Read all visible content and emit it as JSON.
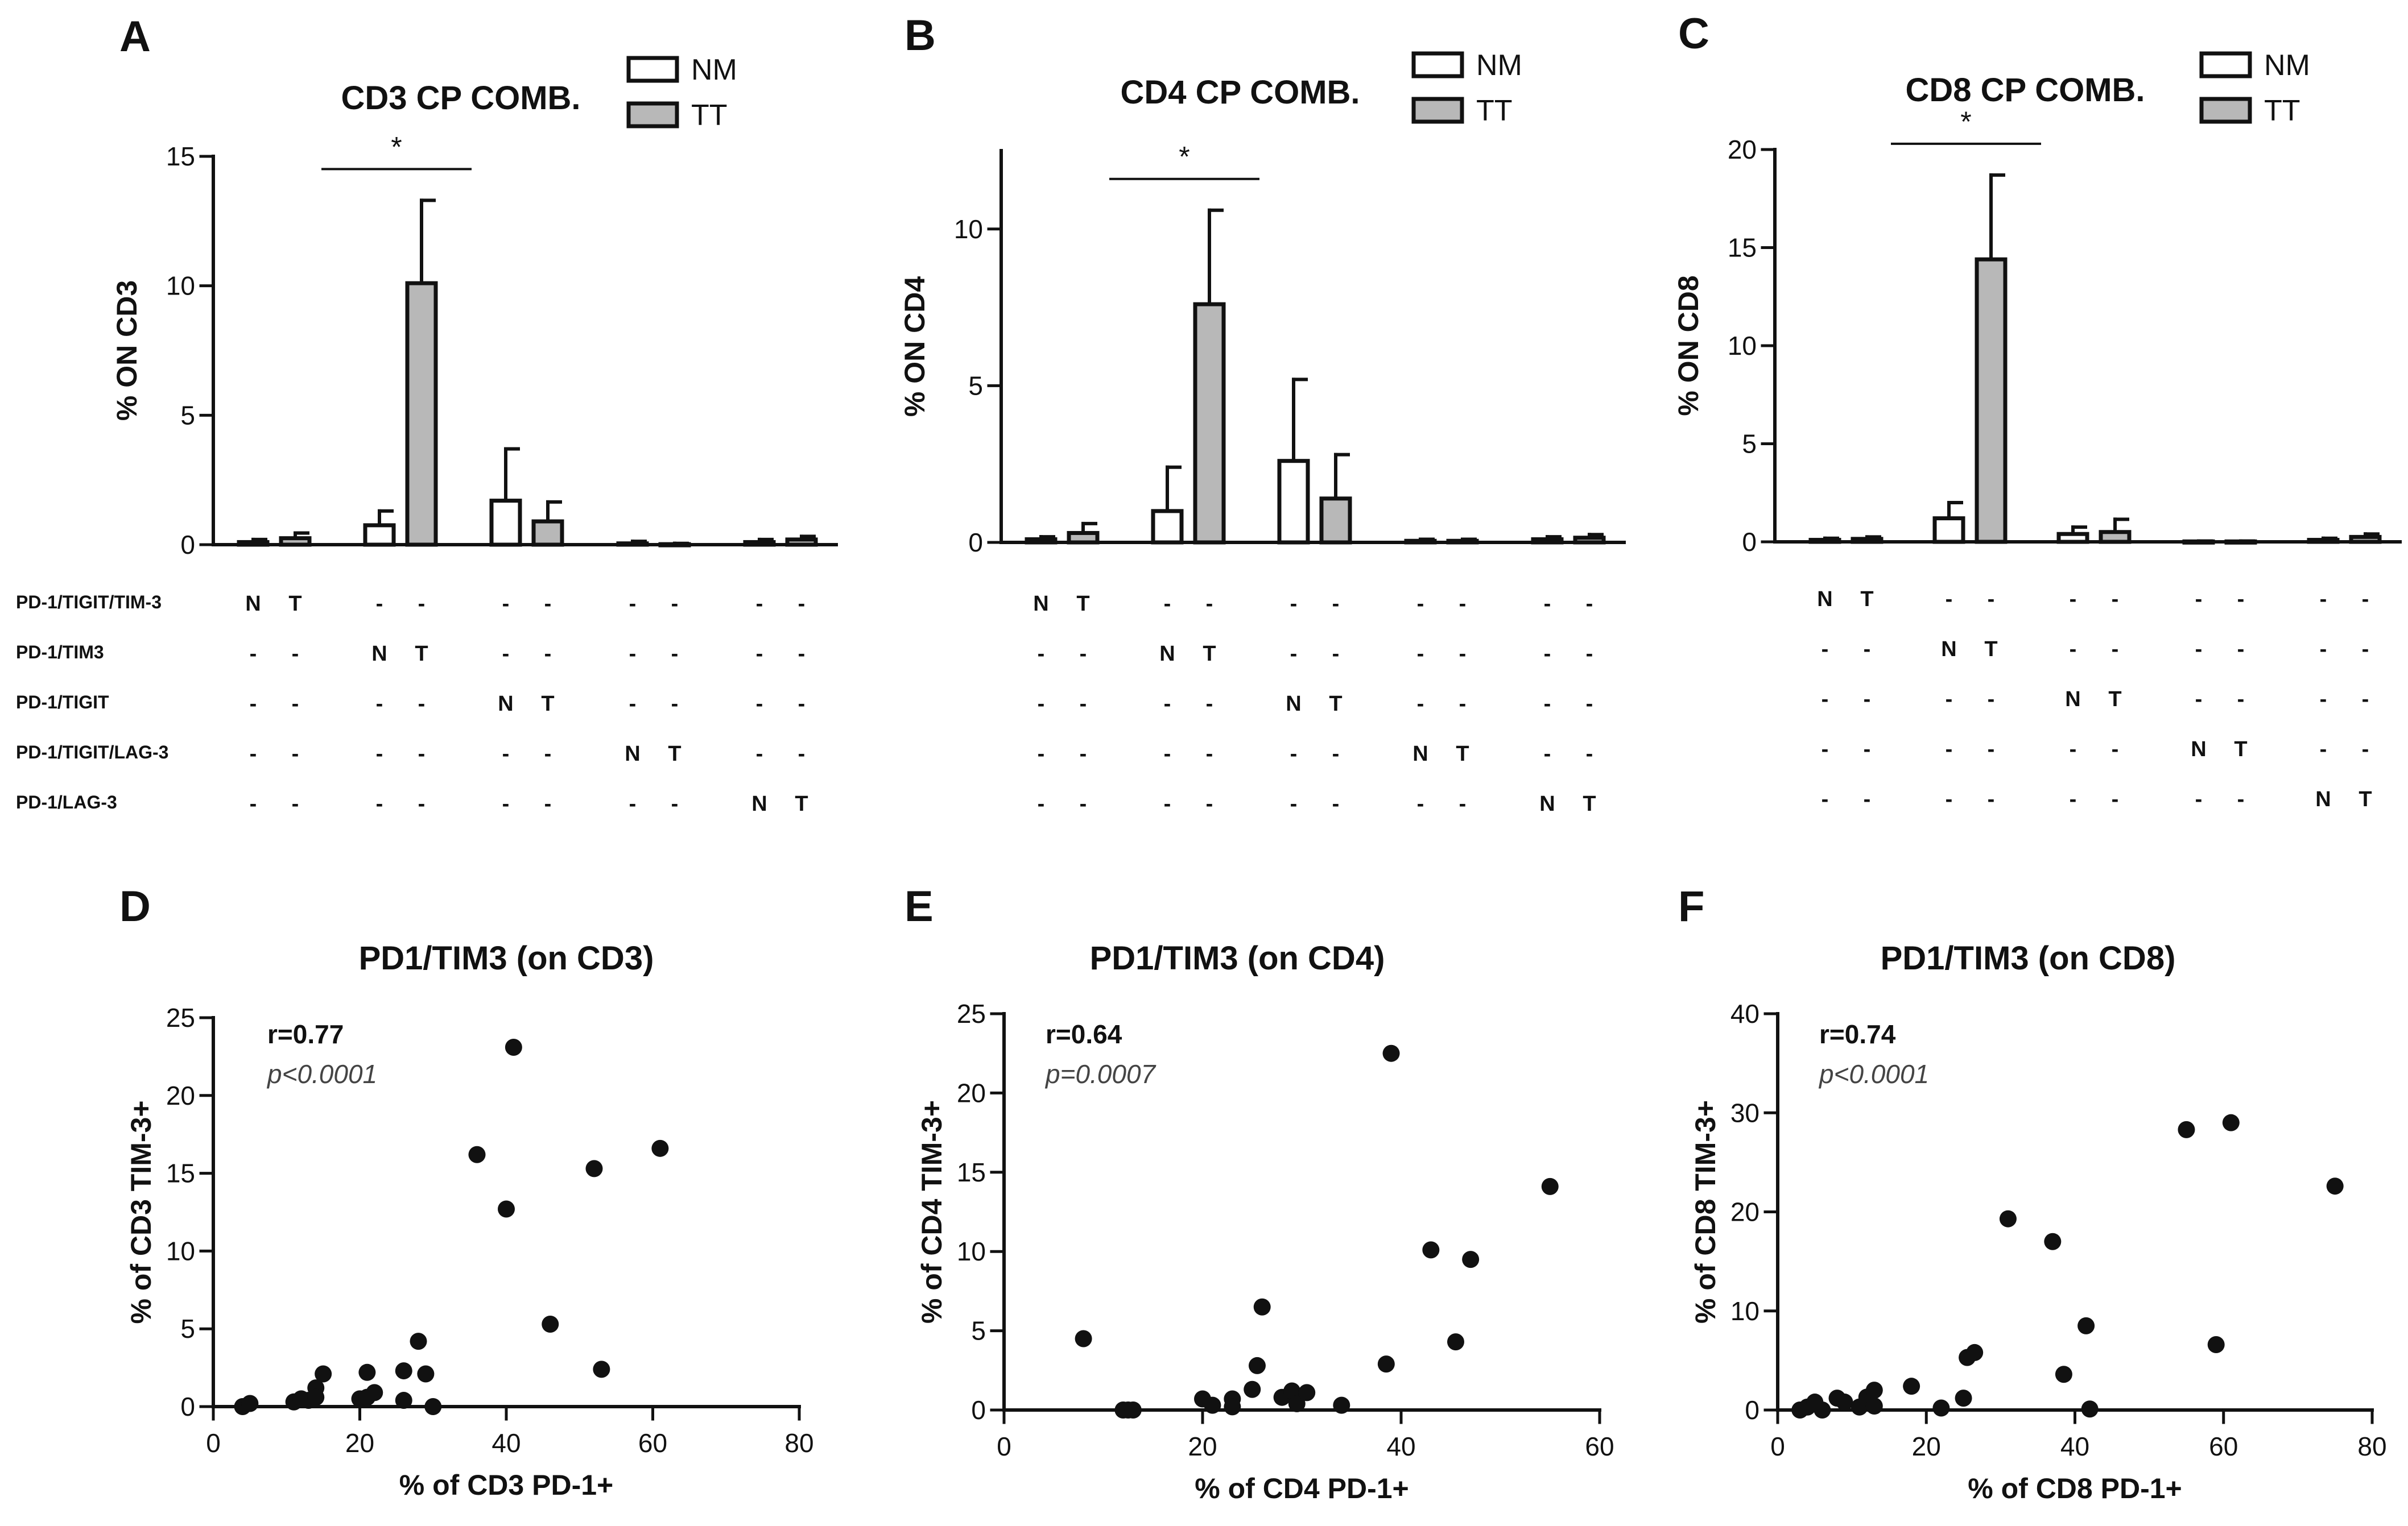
{
  "colors": {
    "nm_fill": "#ffffff",
    "tt_fill": "#b8b8b8",
    "stroke": "#111111",
    "point": "#111111"
  },
  "combo_rows": [
    "PD-1/TIGIT/TIM-3",
    "PD-1/TIM3",
    "PD-1/TIGIT",
    "PD-1/TIGIT/LAG-3",
    "PD-1/LAG-3"
  ],
  "combo_marks": {
    "normal": "N",
    "tumor": "T",
    "absent": "-"
  },
  "chart_data": [
    {
      "panel": "A",
      "type": "bar",
      "title": "CD3 CP COMB.",
      "xlabel": "",
      "ylabel": "% ON CD3",
      "ylim": [
        0,
        15
      ],
      "yticks": [
        0,
        5,
        10,
        15
      ],
      "legend": [
        "NM",
        "TT"
      ],
      "legend_position": "top-right",
      "groups": [
        "PD-1/TIGIT/TIM-3",
        "PD-1/TIM3",
        "PD-1/TIGIT",
        "PD-1/TIGIT/LAG-3",
        "PD-1/LAG-3"
      ],
      "series": [
        {
          "name": "NM",
          "values": [
            0.1,
            0.75,
            1.7,
            0.05,
            0.1
          ],
          "errors": [
            0.1,
            0.55,
            2.0,
            0.08,
            0.1
          ]
        },
        {
          "name": "TT",
          "values": [
            0.25,
            10.1,
            0.9,
            0.02,
            0.2
          ],
          "errors": [
            0.2,
            3.2,
            0.75,
            0.03,
            0.12
          ]
        }
      ],
      "significance": [
        {
          "group": "PD-1/TIM3",
          "label": "*"
        }
      ]
    },
    {
      "panel": "B",
      "type": "bar",
      "title": "CD4 CP COMB.",
      "xlabel": "",
      "ylabel": "% ON CD4",
      "ylim": [
        0,
        12.5
      ],
      "yticks": [
        0,
        5,
        10
      ],
      "legend": [
        "NM",
        "TT"
      ],
      "legend_position": "top-right",
      "groups": [
        "PD-1/TIGIT/TIM-3",
        "PD-1/TIM3",
        "PD-1/TIGIT",
        "PD-1/TIGIT/LAG-3",
        "PD-1/LAG-3"
      ],
      "series": [
        {
          "name": "NM",
          "values": [
            0.1,
            1.0,
            2.6,
            0.05,
            0.1
          ],
          "errors": [
            0.08,
            1.4,
            2.6,
            0.05,
            0.08
          ]
        },
        {
          "name": "TT",
          "values": [
            0.3,
            7.6,
            1.4,
            0.05,
            0.15
          ],
          "errors": [
            0.3,
            3.0,
            1.4,
            0.05,
            0.1
          ]
        }
      ],
      "significance": [
        {
          "group": "PD-1/TIM3",
          "label": "*"
        }
      ]
    },
    {
      "panel": "C",
      "type": "bar",
      "title": "CD8 CP COMB.",
      "xlabel": "",
      "ylabel": "% ON CD8",
      "ylim": [
        0,
        20
      ],
      "yticks": [
        0,
        5,
        10,
        15,
        20
      ],
      "legend": [
        "NM",
        "TT"
      ],
      "legend_position": "top-right",
      "groups": [
        "PD-1/TIGIT/TIM-3",
        "PD-1/TIM3",
        "PD-1/TIGIT",
        "PD-1/TIGIT/LAG-3",
        "PD-1/LAG-3"
      ],
      "series": [
        {
          "name": "NM",
          "values": [
            0.1,
            1.2,
            0.4,
            0.02,
            0.1
          ],
          "errors": [
            0.08,
            0.8,
            0.35,
            0.02,
            0.08
          ]
        },
        {
          "name": "TT",
          "values": [
            0.15,
            14.4,
            0.5,
            0.02,
            0.25
          ],
          "errors": [
            0.1,
            4.3,
            0.65,
            0.02,
            0.15
          ]
        }
      ],
      "significance": [
        {
          "group": "PD-1/TIM3",
          "label": "*"
        }
      ]
    },
    {
      "panel": "D",
      "type": "scatter",
      "title": "PD1/TIM3 (on CD3)",
      "xlabel": "% of CD3 PD-1+",
      "ylabel": "% of CD3 TIM-3+",
      "xlim": [
        0,
        80
      ],
      "ylim": [
        0,
        25
      ],
      "xticks": [
        0,
        20,
        40,
        60,
        80
      ],
      "yticks": [
        0,
        5,
        10,
        15,
        20,
        25
      ],
      "r": "r=0.77",
      "p": "p<0.0001",
      "points": [
        [
          4,
          0
        ],
        [
          5,
          0.2
        ],
        [
          11,
          0.3
        ],
        [
          12,
          0.5
        ],
        [
          13,
          0.4
        ],
        [
          14,
          1.2
        ],
        [
          14,
          0.6
        ],
        [
          15,
          2.1
        ],
        [
          20,
          0.5
        ],
        [
          21,
          2.2
        ],
        [
          21,
          0.6
        ],
        [
          22,
          0.9
        ],
        [
          26,
          0.4
        ],
        [
          26,
          2.3
        ],
        [
          28,
          4.2
        ],
        [
          29,
          2.1
        ],
        [
          30,
          0
        ],
        [
          36,
          16.2
        ],
        [
          40,
          12.7
        ],
        [
          41,
          23.1
        ],
        [
          46,
          5.3
        ],
        [
          52,
          15.3
        ],
        [
          53,
          2.4
        ],
        [
          61,
          16.6
        ]
      ]
    },
    {
      "panel": "E",
      "type": "scatter",
      "title": "PD1/TIM3 (on CD4)",
      "xlabel": "% of CD4 PD-1+",
      "ylabel": "% of CD4 TIM-3+",
      "xlim": [
        0,
        60
      ],
      "ylim": [
        0,
        25
      ],
      "xticks": [
        0,
        20,
        40,
        60
      ],
      "yticks": [
        0,
        5,
        10,
        15,
        20,
        25
      ],
      "r": "r=0.64",
      "p": "p=0.0007",
      "points": [
        [
          8,
          4.5
        ],
        [
          12,
          0
        ],
        [
          12.5,
          0
        ],
        [
          13,
          0
        ],
        [
          20,
          0.7
        ],
        [
          21,
          0.3
        ],
        [
          23,
          0.7
        ],
        [
          23,
          0.2
        ],
        [
          25,
          1.3
        ],
        [
          25.5,
          2.8
        ],
        [
          26,
          6.5
        ],
        [
          28,
          0.8
        ],
        [
          29,
          1.2
        ],
        [
          29.5,
          0.4
        ],
        [
          30.5,
          1.1
        ],
        [
          34,
          0.3
        ],
        [
          38.5,
          2.9
        ],
        [
          39,
          22.5
        ],
        [
          43,
          10.1
        ],
        [
          45.5,
          4.3
        ],
        [
          47,
          9.5
        ],
        [
          55,
          14.1
        ]
      ]
    },
    {
      "panel": "F",
      "type": "scatter",
      "title": "PD1/TIM3 (on CD8)",
      "xlabel": "% of CD8 PD-1+",
      "ylabel": "% of CD8 TIM-3+",
      "xlim": [
        0,
        80
      ],
      "ylim": [
        0,
        40
      ],
      "xticks": [
        0,
        20,
        40,
        60,
        80
      ],
      "yticks": [
        0,
        10,
        20,
        30,
        40
      ],
      "r": "r=0.74",
      "p": "p<0.0001",
      "points": [
        [
          3,
          0
        ],
        [
          4,
          0.3
        ],
        [
          5,
          0.8
        ],
        [
          6,
          0
        ],
        [
          8,
          1.2
        ],
        [
          9,
          0.8
        ],
        [
          11,
          0.3
        ],
        [
          12,
          1.3
        ],
        [
          13,
          2
        ],
        [
          13,
          0.4
        ],
        [
          18,
          2.4
        ],
        [
          22,
          0.2
        ],
        [
          25,
          1.2
        ],
        [
          25.5,
          5.3
        ],
        [
          26.5,
          5.8
        ],
        [
          31,
          19.3
        ],
        [
          37,
          17
        ],
        [
          38.5,
          3.6
        ],
        [
          41.5,
          8.5
        ],
        [
          42,
          0.1
        ],
        [
          55,
          28.3
        ],
        [
          59,
          6.6
        ],
        [
          61,
          29
        ],
        [
          75,
          22.6
        ]
      ]
    }
  ]
}
